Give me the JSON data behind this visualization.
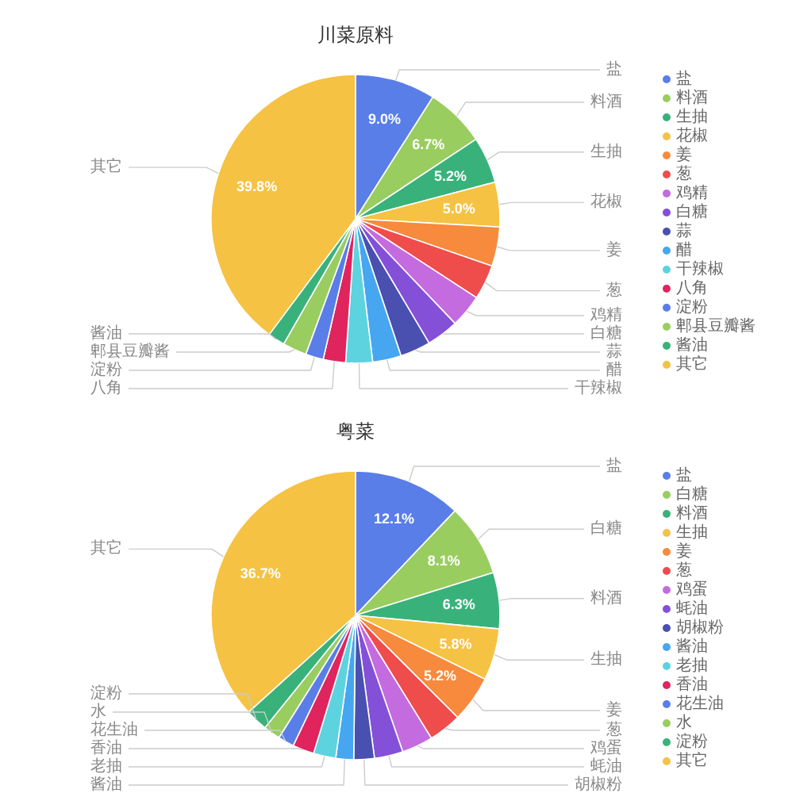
{
  "chart_data": [
    {
      "type": "pie",
      "title": "川菜原料",
      "legend": "right",
      "categories": [
        "盐",
        "料酒",
        "生抽",
        "花椒",
        "姜",
        "葱",
        "鸡精",
        "白糖",
        "蒜",
        "醋",
        "干辣椒",
        "八角",
        "淀粉",
        "郫县豆瓣酱",
        "酱油",
        "其它"
      ],
      "values": [
        9.0,
        6.7,
        5.2,
        5.0,
        4.4,
        3.9,
        3.7,
        3.6,
        3.4,
        3.2,
        3.0,
        2.5,
        2.0,
        2.7,
        1.9,
        39.8
      ],
      "value_labels": [
        "9.0%",
        "6.7%",
        "5.2%",
        "5.0%",
        null,
        null,
        null,
        null,
        null,
        null,
        null,
        null,
        null,
        null,
        null,
        "39.8%"
      ],
      "colors": [
        "#5a7ee8",
        "#9acd60",
        "#38b27a",
        "#f5c243",
        "#f78a3d",
        "#ef4c4c",
        "#c46be0",
        "#8450d8",
        "#4a50b0",
        "#46a6f0",
        "#5dd3e0",
        "#e0245e",
        "#5a7ee8",
        "#9acd60",
        "#38b27a",
        "#f5c243"
      ]
    },
    {
      "type": "pie",
      "title": "粤菜",
      "legend": "right",
      "categories": [
        "盐",
        "白糖",
        "料酒",
        "生抽",
        "姜",
        "葱",
        "鸡蛋",
        "蚝油",
        "胡椒粉",
        "酱油",
        "老抽",
        "香油",
        "花生油",
        "水",
        "淀粉",
        "其它"
      ],
      "values": [
        12.1,
        8.1,
        6.3,
        5.8,
        5.2,
        3.7,
        3.5,
        3.2,
        2.3,
        2.0,
        2.5,
        2.4,
        1.8,
        1.9,
        2.5,
        36.7
      ],
      "value_labels": [
        "12.1%",
        "8.1%",
        "6.3%",
        "5.8%",
        "5.2%",
        null,
        null,
        null,
        null,
        null,
        null,
        null,
        null,
        null,
        null,
        "36.7%"
      ],
      "colors": [
        "#5a7ee8",
        "#9acd60",
        "#38b27a",
        "#f5c243",
        "#f78a3d",
        "#ef4c4c",
        "#c46be0",
        "#8450d8",
        "#4a50b0",
        "#46a6f0",
        "#5dd3e0",
        "#e0245e",
        "#5a7ee8",
        "#9acd60",
        "#38b27a",
        "#f5c243"
      ]
    }
  ]
}
